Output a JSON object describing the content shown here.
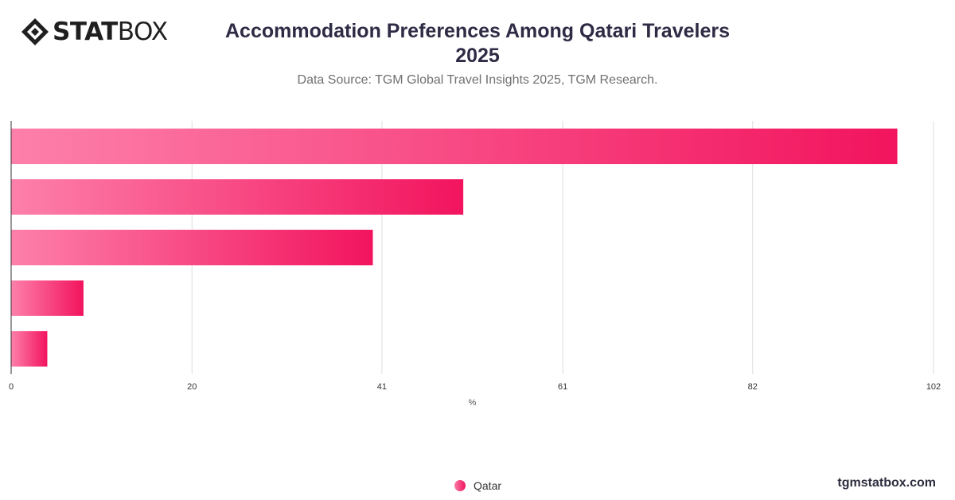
{
  "logo": {
    "strong": "STAT",
    "light": "BOX"
  },
  "header": {
    "title_line1": "Accommodation Preferences Among Qatari Travelers",
    "title_line2": "2025",
    "subtitle": "Data Source: TGM Global Travel Insights 2025, TGM Research."
  },
  "legend": {
    "label": "Qatar",
    "color": "#f2145e"
  },
  "brand": "tgmstatbox.com",
  "chart_data": {
    "type": "bar",
    "orientation": "horizontal",
    "title": "Accommodation Preferences Among Qatari Travelers 2025",
    "subtitle": "Data Source: TGM Global Travel Insights 2025, TGM Research.",
    "xlabel": "%",
    "ylabel": "",
    "xlim": [
      0,
      102
    ],
    "xticks": [
      "0",
      "20",
      "41",
      "61",
      "82",
      "102"
    ],
    "grid": true,
    "legend_position": "bottom",
    "colors": {
      "start": "#fd80aa",
      "end": "#f2145e"
    },
    "series": [
      {
        "name": "Qatar",
        "values": [
          98,
          50,
          40,
          8,
          4
        ]
      }
    ]
  }
}
